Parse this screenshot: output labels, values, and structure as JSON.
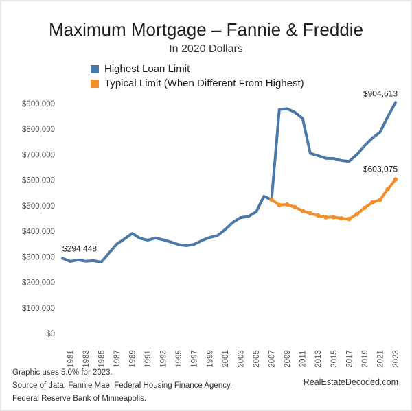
{
  "chart_data": {
    "type": "line",
    "title": "Maximum Mortgage – Fannie & Freddie",
    "subtitle": "In 2020 Dollars",
    "xlabel": "",
    "ylabel": "",
    "ylim": [
      0,
      900000
    ],
    "yticks": [
      0,
      100000,
      200000,
      300000,
      400000,
      500000,
      600000,
      700000,
      800000,
      900000
    ],
    "ytick_labels": [
      "$0",
      "$100,000",
      "$200,000",
      "$300,000",
      "$400,000",
      "$500,000",
      "$600,000",
      "$700,000",
      "$800,000",
      "$900,000"
    ],
    "xlim": [
      1980,
      2023
    ],
    "xticks": [
      1981,
      1983,
      1985,
      1987,
      1989,
      1991,
      1993,
      1995,
      1997,
      1999,
      2001,
      2003,
      2005,
      2007,
      2009,
      2011,
      2013,
      2015,
      2017,
      2019,
      2021,
      2023
    ],
    "xtick_labels": [
      "1981",
      "1983",
      "1985",
      "1987",
      "1989",
      "1991",
      "1993",
      "1995",
      "1997",
      "1999",
      "2001",
      "2003",
      "2005",
      "2007",
      "2009",
      "2011",
      "2013",
      "2015",
      "2017",
      "2019",
      "2021",
      "2023"
    ],
    "grid": false,
    "legend_position": "top-left",
    "series": [
      {
        "name": "Highest Loan Limit",
        "color": "#4a78a8",
        "points": [
          [
            1980,
            294448
          ],
          [
            1981,
            282000
          ],
          [
            1982,
            288000
          ],
          [
            1983,
            283000
          ],
          [
            1984,
            285000
          ],
          [
            1985,
            279000
          ],
          [
            1986,
            315000
          ],
          [
            1987,
            350000
          ],
          [
            1988,
            370000
          ],
          [
            1989,
            392000
          ],
          [
            1990,
            373000
          ],
          [
            1991,
            365000
          ],
          [
            1992,
            374000
          ],
          [
            1993,
            367000
          ],
          [
            1994,
            358000
          ],
          [
            1995,
            348000
          ],
          [
            1996,
            344000
          ],
          [
            1997,
            349000
          ],
          [
            1998,
            364000
          ],
          [
            1999,
            376000
          ],
          [
            2000,
            383000
          ],
          [
            2001,
            407000
          ],
          [
            2002,
            435000
          ],
          [
            2003,
            454000
          ],
          [
            2004,
            458000
          ],
          [
            2005,
            476000
          ],
          [
            2006,
            537000
          ],
          [
            2007,
            524000
          ],
          [
            2008,
            877000
          ],
          [
            2009,
            880000
          ],
          [
            2010,
            866000
          ],
          [
            2011,
            842000
          ],
          [
            2012,
            705000
          ],
          [
            2013,
            696000
          ],
          [
            2014,
            686000
          ],
          [
            2015,
            685000
          ],
          [
            2016,
            677000
          ],
          [
            2017,
            674000
          ],
          [
            2018,
            700000
          ],
          [
            2019,
            735000
          ],
          [
            2020,
            765000
          ],
          [
            2021,
            788000
          ],
          [
            2022,
            849000
          ],
          [
            2023,
            904613
          ]
        ]
      },
      {
        "name": "Typical Limit (When Different From Highest)",
        "color": "#f28e2b",
        "points": [
          [
            2007,
            524000
          ],
          [
            2008,
            503000
          ],
          [
            2009,
            505000
          ],
          [
            2010,
            495000
          ],
          [
            2011,
            480000
          ],
          [
            2012,
            470000
          ],
          [
            2013,
            462000
          ],
          [
            2014,
            455000
          ],
          [
            2015,
            456000
          ],
          [
            2016,
            451000
          ],
          [
            2017,
            448000
          ],
          [
            2018,
            467000
          ],
          [
            2019,
            492000
          ],
          [
            2020,
            513000
          ],
          [
            2021,
            523000
          ],
          [
            2022,
            565000
          ],
          [
            2023,
            603075
          ]
        ]
      }
    ],
    "annotations": [
      {
        "text": "$294,448",
        "series": 0,
        "x": 1980,
        "y": 294448
      },
      {
        "text": "$904,613",
        "series": 0,
        "x": 2023,
        "y": 904613
      },
      {
        "text": "$603,075",
        "series": 1,
        "x": 2023,
        "y": 603075
      }
    ]
  },
  "footnote": {
    "line1": "Graphic uses  5.0% for 2023.",
    "line2": "Source of data: Fannie Mae, Federal Housing Finance Agency,",
    "line3": "Federal Reserve Bank of Minneapolis."
  },
  "brand": "RealEstateDecoded.com"
}
